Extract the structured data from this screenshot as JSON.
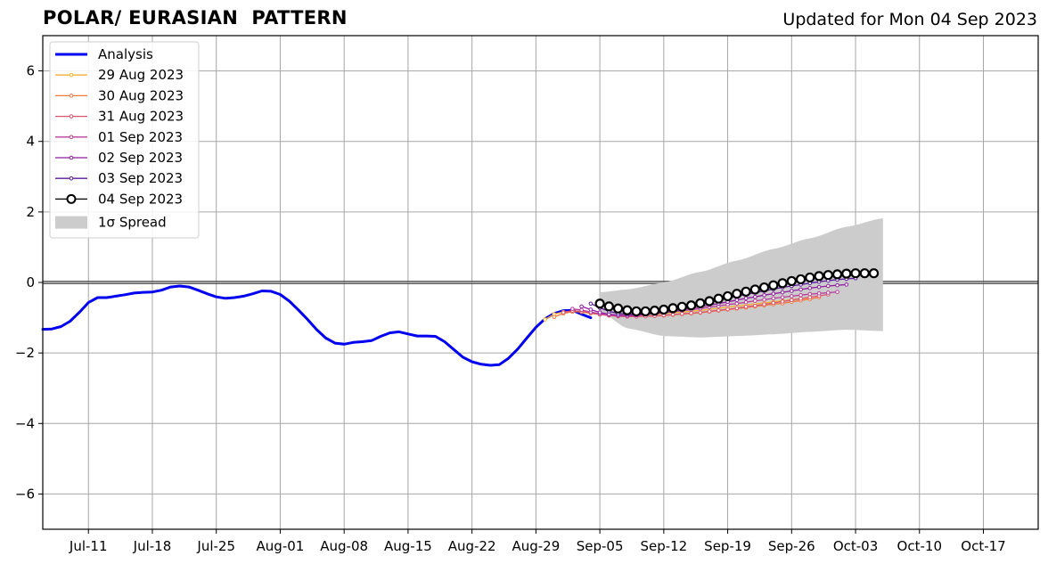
{
  "header": {
    "title": "POLAR/ EURASIAN  PATTERN",
    "subtitle": "Updated for Mon 04 Sep 2023"
  },
  "chart_data": {
    "type": "line",
    "title": "POLAR/ EURASIAN  PATTERN",
    "xlabel": "",
    "ylabel": "",
    "x_axis": {
      "type": "date",
      "start": "2023-07-06",
      "end": "2023-10-23",
      "ticks": [
        "2023-07-11",
        "2023-07-18",
        "2023-07-25",
        "2023-08-01",
        "2023-08-08",
        "2023-08-15",
        "2023-08-22",
        "2023-08-29",
        "2023-09-05",
        "2023-09-12",
        "2023-09-19",
        "2023-09-26",
        "2023-10-03",
        "2023-10-10",
        "2023-10-17"
      ],
      "tick_labels": [
        "Jul-11",
        "Jul-18",
        "Jul-25",
        "Aug-01",
        "Aug-08",
        "Aug-15",
        "Aug-22",
        "Aug-29",
        "Sep-05",
        "Sep-12",
        "Sep-19",
        "Sep-26",
        "Oct-03",
        "Oct-10",
        "Oct-17"
      ]
    },
    "y_axis": {
      "ylim": [
        -7,
        7
      ],
      "ticks": [
        -6,
        -4,
        -2,
        0,
        2,
        4,
        6
      ],
      "tick_labels": [
        "−6",
        "−4",
        "−2",
        "0",
        "2",
        "4",
        "6"
      ]
    },
    "grid": true,
    "zero_line": true,
    "legend_position": "top-left",
    "analysis": {
      "name": "Analysis",
      "color": "#0000ee",
      "start": "2023-07-06",
      "values": [
        -1.33,
        -1.32,
        -1.25,
        -1.1,
        -0.85,
        -0.57,
        -0.43,
        -0.43,
        -0.39,
        -0.35,
        -0.3,
        -0.28,
        -0.27,
        -0.22,
        -0.13,
        -0.1,
        -0.13,
        -0.22,
        -0.32,
        -0.41,
        -0.45,
        -0.43,
        -0.39,
        -0.32,
        -0.24,
        -0.25,
        -0.34,
        -0.53,
        -0.78,
        -1.05,
        -1.34,
        -1.58,
        -1.72,
        -1.75,
        -1.7,
        -1.68,
        -1.65,
        -1.53,
        -1.43,
        -1.4,
        -1.46,
        -1.52,
        -1.52,
        -1.53,
        -1.68,
        -1.9,
        -2.12,
        -2.25,
        -2.32,
        -2.35,
        -2.33,
        -2.15,
        -1.89,
        -1.58,
        -1.27,
        -1.03,
        -0.88,
        -0.8,
        -0.79,
        -0.9,
        -1.0
      ]
    },
    "forecasts": [
      {
        "name": "29 Aug 2023",
        "color": "#f9b233",
        "start": "2023-08-30",
        "values": [
          -1.05,
          -0.9,
          -0.84,
          -0.82,
          -0.84,
          -0.88,
          -0.91,
          -0.92,
          -0.93,
          -0.93,
          -0.92,
          -0.91,
          -0.9,
          -0.88,
          -0.86,
          -0.84,
          -0.82,
          -0.79,
          -0.76,
          -0.73,
          -0.7,
          -0.67,
          -0.64,
          -0.61,
          -0.58,
          -0.55,
          -0.52,
          -0.49,
          -0.46,
          -0.44
        ]
      },
      {
        "name": "30 Aug 2023",
        "color": "#f07a3c",
        "start": "2023-08-31",
        "values": [
          -0.98,
          -0.88,
          -0.83,
          -0.83,
          -0.86,
          -0.9,
          -0.93,
          -0.95,
          -0.96,
          -0.96,
          -0.96,
          -0.95,
          -0.94,
          -0.92,
          -0.9,
          -0.88,
          -0.86,
          -0.83,
          -0.8,
          -0.77,
          -0.74,
          -0.71,
          -0.68,
          -0.65,
          -0.62,
          -0.59,
          -0.55,
          -0.51,
          -0.47,
          -0.42
        ]
      },
      {
        "name": "31 Aug 2023",
        "color": "#d95670",
        "start": "2023-09-01",
        "values": [
          -0.85,
          -0.8,
          -0.82,
          -0.87,
          -0.91,
          -0.94,
          -0.96,
          -0.97,
          -0.97,
          -0.96,
          -0.95,
          -0.93,
          -0.91,
          -0.89,
          -0.87,
          -0.85,
          -0.82,
          -0.79,
          -0.76,
          -0.73,
          -0.69,
          -0.66,
          -0.62,
          -0.58,
          -0.54,
          -0.5,
          -0.46,
          -0.42,
          -0.38,
          -0.34
        ]
      },
      {
        "name": "01 Sep 2023",
        "color": "#b83e9c",
        "start": "2023-09-02",
        "values": [
          -0.75,
          -0.78,
          -0.84,
          -0.89,
          -0.92,
          -0.94,
          -0.94,
          -0.93,
          -0.91,
          -0.89,
          -0.86,
          -0.83,
          -0.8,
          -0.77,
          -0.74,
          -0.7,
          -0.67,
          -0.63,
          -0.6,
          -0.56,
          -0.52,
          -0.49,
          -0.45,
          -0.42,
          -0.39,
          -0.36,
          -0.33,
          -0.31,
          -0.29,
          -0.27
        ]
      },
      {
        "name": "02 Sep 2023",
        "color": "#8f1e9f",
        "start": "2023-09-03",
        "values": [
          -0.68,
          -0.77,
          -0.85,
          -0.9,
          -0.93,
          -0.94,
          -0.93,
          -0.91,
          -0.88,
          -0.85,
          -0.81,
          -0.77,
          -0.73,
          -0.69,
          -0.64,
          -0.6,
          -0.55,
          -0.5,
          -0.45,
          -0.41,
          -0.36,
          -0.32,
          -0.28,
          -0.24,
          -0.2,
          -0.16,
          -0.13,
          -0.1,
          -0.08,
          -0.06
        ]
      },
      {
        "name": "03 Sep 2023",
        "color": "#5a1a9a",
        "start": "2023-09-04",
        "values": [
          -0.6,
          -0.72,
          -0.82,
          -0.88,
          -0.9,
          -0.9,
          -0.88,
          -0.85,
          -0.81,
          -0.77,
          -0.72,
          -0.67,
          -0.62,
          -0.56,
          -0.51,
          -0.45,
          -0.39,
          -0.34,
          -0.29,
          -0.24,
          -0.19,
          -0.14,
          -0.1,
          -0.06,
          -0.02,
          0.02,
          0.05,
          0.08,
          0.1,
          0.12
        ]
      },
      {
        "name": "04 Sep 2023",
        "color": "#000000",
        "start": "2023-09-05",
        "values": [
          -0.6,
          -0.68,
          -0.74,
          -0.79,
          -0.82,
          -0.82,
          -0.8,
          -0.77,
          -0.73,
          -0.69,
          -0.65,
          -0.59,
          -0.53,
          -0.46,
          -0.39,
          -0.32,
          -0.26,
          -0.2,
          -0.14,
          -0.08,
          -0.02,
          0.04,
          0.09,
          0.14,
          0.18,
          0.21,
          0.23,
          0.25,
          0.26,
          0.26,
          0.26
        ]
      }
    ],
    "spread": {
      "name": "1σ Spread",
      "color": "#cccccc",
      "start": "2023-09-05",
      "end": "2023-10-06",
      "upper_points": [
        [
          "2023-09-05",
          -0.28
        ],
        [
          "2023-09-08",
          -0.2
        ],
        [
          "2023-09-12",
          0.0
        ],
        [
          "2023-09-16",
          0.3
        ],
        [
          "2023-09-20",
          0.62
        ],
        [
          "2023-09-24",
          0.95
        ],
        [
          "2023-09-28",
          1.25
        ],
        [
          "2023-10-02",
          1.58
        ],
        [
          "2023-10-06",
          1.82
        ]
      ],
      "lower_points": [
        [
          "2023-09-05",
          -0.82
        ],
        [
          "2023-09-08",
          -1.3
        ],
        [
          "2023-09-12",
          -1.52
        ],
        [
          "2023-09-16",
          -1.56
        ],
        [
          "2023-09-20",
          -1.52
        ],
        [
          "2023-09-24",
          -1.47
        ],
        [
          "2023-09-28",
          -1.4
        ],
        [
          "2023-10-02",
          -1.34
        ],
        [
          "2023-10-06",
          -1.38
        ]
      ]
    },
    "legend": [
      "Analysis",
      "29 Aug 2023",
      "30 Aug 2023",
      "31 Aug 2023",
      "01 Sep 2023",
      "02 Sep 2023",
      "03 Sep 2023",
      "04 Sep 2023",
      "1σ Spread"
    ]
  }
}
